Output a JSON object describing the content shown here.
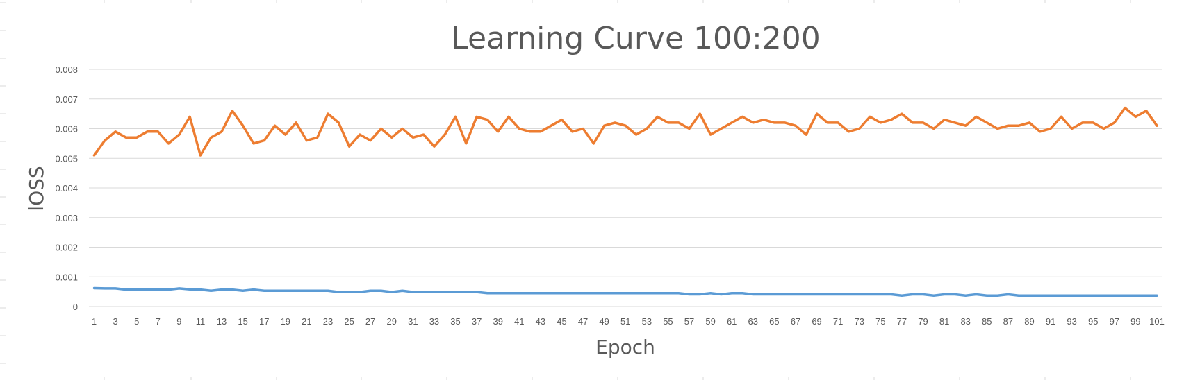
{
  "chart_data": {
    "type": "line",
    "title": "Learning Curve 100:200",
    "xlabel": "Epoch",
    "ylabel": "lOSS",
    "ylim": [
      0,
      0.008
    ],
    "yticks": [
      "0",
      "0.001",
      "0.002",
      "0.003",
      "0.004",
      "0.005",
      "0.006",
      "0.007",
      "0.008"
    ],
    "x": [
      1,
      2,
      3,
      4,
      5,
      6,
      7,
      8,
      9,
      10,
      11,
      12,
      13,
      14,
      15,
      16,
      17,
      18,
      19,
      20,
      21,
      22,
      23,
      24,
      25,
      26,
      27,
      28,
      29,
      30,
      31,
      32,
      33,
      34,
      35,
      36,
      37,
      38,
      39,
      40,
      41,
      42,
      43,
      44,
      45,
      46,
      47,
      48,
      49,
      50,
      51,
      52,
      53,
      54,
      55,
      56,
      57,
      58,
      59,
      60,
      61,
      62,
      63,
      64,
      65,
      66,
      67,
      68,
      69,
      70,
      71,
      72,
      73,
      74,
      75,
      76,
      77,
      78,
      79,
      80,
      81,
      82,
      83,
      84,
      85,
      86,
      87,
      88,
      89,
      90,
      91,
      92,
      93,
      94,
      95,
      96,
      97,
      98,
      99,
      100,
      101
    ],
    "xtick_labels": [
      "1",
      "3",
      "5",
      "7",
      "9",
      "11",
      "13",
      "15",
      "17",
      "19",
      "21",
      "23",
      "25",
      "27",
      "29",
      "31",
      "33",
      "35",
      "37",
      "39",
      "41",
      "43",
      "45",
      "47",
      "49",
      "51",
      "53",
      "55",
      "57",
      "59",
      "61",
      "63",
      "65",
      "67",
      "69",
      "71",
      "73",
      "75",
      "77",
      "79",
      "81",
      "83",
      "85",
      "87",
      "89",
      "91",
      "93",
      "95",
      "97",
      "99",
      "101"
    ],
    "grid": true,
    "series": [
      {
        "color": "#ED7D31",
        "values": [
          0.0051,
          0.0056,
          0.0059,
          0.0057,
          0.0057,
          0.0059,
          0.0059,
          0.0055,
          0.0058,
          0.0064,
          0.0051,
          0.0057,
          0.0059,
          0.0066,
          0.0061,
          0.0055,
          0.0056,
          0.0061,
          0.0058,
          0.0062,
          0.0056,
          0.0057,
          0.0065,
          0.0062,
          0.0054,
          0.0058,
          0.0056,
          0.006,
          0.0057,
          0.006,
          0.0057,
          0.0058,
          0.0054,
          0.0058,
          0.0064,
          0.0055,
          0.0064,
          0.0063,
          0.0059,
          0.0064,
          0.006,
          0.0059,
          0.0059,
          0.0061,
          0.0063,
          0.0059,
          0.006,
          0.0055,
          0.0061,
          0.0062,
          0.0061,
          0.0058,
          0.006,
          0.0064,
          0.0062,
          0.0062,
          0.006,
          0.0065,
          0.0058,
          0.006,
          0.0062,
          0.0064,
          0.0062,
          0.0063,
          0.0062,
          0.0062,
          0.0061,
          0.0058,
          0.0065,
          0.0062,
          0.0062,
          0.0059,
          0.006,
          0.0064,
          0.0062,
          0.0063,
          0.0065,
          0.0062,
          0.0062,
          0.006,
          0.0063,
          0.0062,
          0.0061,
          0.0064,
          0.0062,
          0.006,
          0.0061,
          0.0061,
          0.0062,
          0.0059,
          0.006,
          0.0064,
          0.006,
          0.0062,
          0.0062,
          0.006,
          0.0062,
          0.0067,
          0.0064,
          0.0066,
          0.0061
        ]
      },
      {
        "color": "#5B9BD5",
        "values": [
          0.00062,
          0.00061,
          0.00061,
          0.00057,
          0.00057,
          0.00057,
          0.00057,
          0.00057,
          0.00061,
          0.00058,
          0.00057,
          0.00053,
          0.00057,
          0.00057,
          0.00053,
          0.00057,
          0.00053,
          0.00053,
          0.00053,
          0.00053,
          0.00053,
          0.00053,
          0.00053,
          0.00049,
          0.00049,
          0.00049,
          0.00053,
          0.00053,
          0.00049,
          0.00053,
          0.00049,
          0.00049,
          0.00049,
          0.00049,
          0.00049,
          0.00049,
          0.00049,
          0.00045,
          0.00045,
          0.00045,
          0.00045,
          0.00045,
          0.00045,
          0.00045,
          0.00045,
          0.00045,
          0.00045,
          0.00045,
          0.00045,
          0.00045,
          0.00045,
          0.00045,
          0.00045,
          0.00045,
          0.00045,
          0.00045,
          0.00041,
          0.00041,
          0.00045,
          0.00041,
          0.00045,
          0.00045,
          0.00041,
          0.00041,
          0.00041,
          0.00041,
          0.00041,
          0.00041,
          0.00041,
          0.00041,
          0.00041,
          0.00041,
          0.00041,
          0.00041,
          0.00041,
          0.00041,
          0.00037,
          0.00041,
          0.00041,
          0.00037,
          0.00041,
          0.00041,
          0.00037,
          0.00041,
          0.00037,
          0.00037,
          0.00041,
          0.00037,
          0.00037,
          0.00037,
          0.00037,
          0.00037,
          0.00037,
          0.00037,
          0.00037,
          0.00037,
          0.00037,
          0.00037,
          0.00037,
          0.00037,
          0.00037
        ]
      }
    ]
  }
}
